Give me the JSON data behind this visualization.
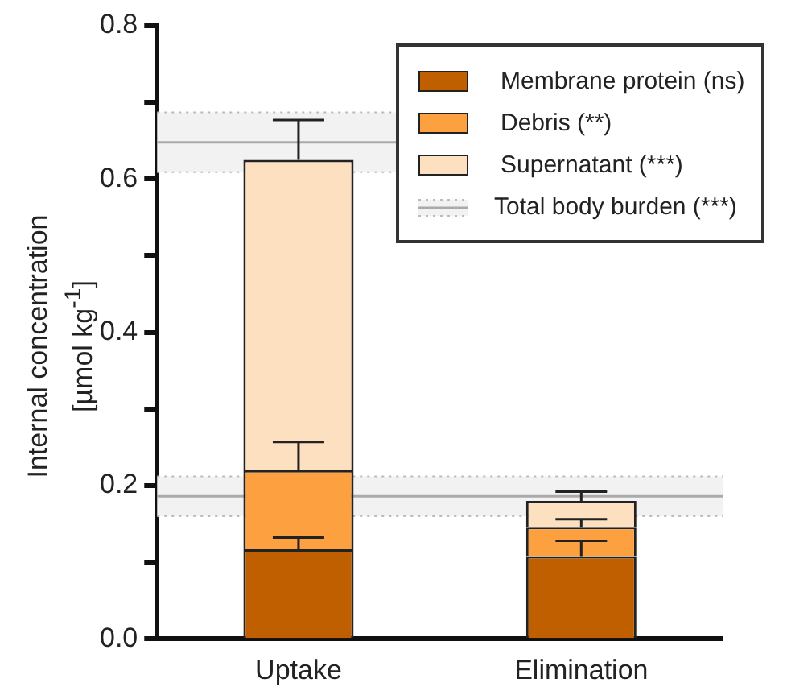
{
  "chart_data": {
    "type": "bar",
    "stacked": true,
    "ylabel": "Internal concentration\n[µmol kg$^{-1}$]",
    "categories": [
      "Uptake",
      "Elimination"
    ],
    "series": [
      {
        "name": "Membrane protein (ns)",
        "color": "#c05f00",
        "values": [
          0.117,
          0.108
        ],
        "errors": [
          [
            0.117,
            0.132
          ],
          [
            0.108,
            0.128
          ]
        ]
      },
      {
        "name": "Debris (**)",
        "color": "#fca040",
        "values": [
          0.103,
          0.038
        ],
        "errors": [
          [
            0.22,
            0.257
          ],
          [
            0.146,
            0.156
          ]
        ]
      },
      {
        "name": "Supernatant (***)",
        "color": "#fde0c0",
        "values": [
          0.405,
          0.034
        ],
        "errors": [
          [
            0.625,
            0.677
          ],
          [
            0.18,
            0.192
          ]
        ]
      }
    ],
    "ref_lines": [
      {
        "axis": "y",
        "value": 0.648,
        "label": "Total body burden (***)",
        "color": "#aaaaaa"
      },
      {
        "axis": "y",
        "value": 0.186,
        "color": "#aaaaaa"
      }
    ],
    "bands": [
      {
        "axis": "y",
        "from": 0.609,
        "to": 0.687,
        "color": "#f2f2f2"
      },
      {
        "axis": "y",
        "from": 0.16,
        "to": 0.212,
        "color": "#f2f2f2"
      }
    ],
    "ylim": [
      0,
      0.8
    ],
    "yticks": [
      {
        "value": 0,
        "label": "0.0"
      },
      {
        "value": 0.1,
        "label": null
      },
      0.2,
      {
        "value": 0.3,
        "label": null
      },
      0.4,
      {
        "value": 0.5,
        "label": null
      },
      0.6,
      {
        "value": 0.7,
        "label": null
      },
      0.8
    ],
    "grid": false,
    "legend": "top right"
  }
}
